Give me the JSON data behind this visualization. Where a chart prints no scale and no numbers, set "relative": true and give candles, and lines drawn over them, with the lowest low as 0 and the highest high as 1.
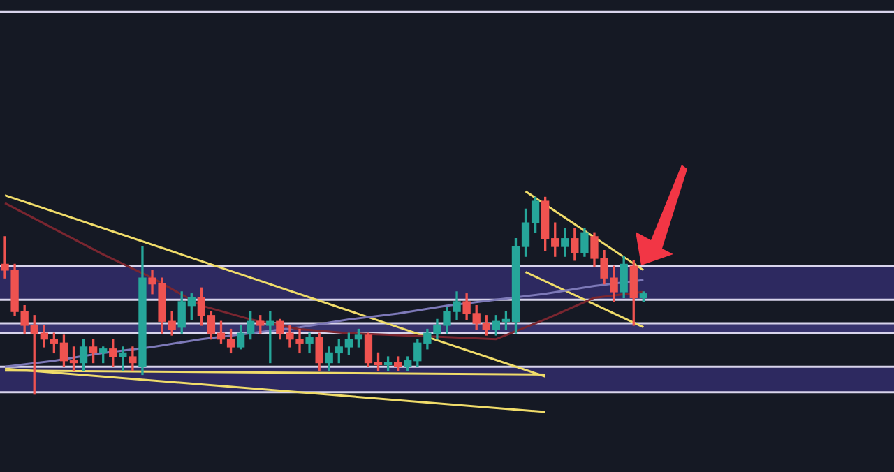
{
  "chart_data": {
    "type": "candlestick",
    "relative": true,
    "categories": [
      null,
      null,
      null,
      null,
      null,
      null,
      null,
      null,
      null,
      null,
      null,
      null,
      null,
      null,
      null,
      null,
      null,
      null,
      null,
      null,
      null,
      null,
      null,
      null,
      null,
      null,
      null,
      null,
      null,
      null,
      null,
      null,
      null,
      null,
      null,
      null,
      null,
      null,
      null,
      null,
      null,
      null,
      null,
      null,
      null,
      null,
      null,
      null,
      null,
      null,
      null,
      null,
      null,
      null,
      null,
      null,
      null,
      null,
      null,
      null,
      null,
      null,
      null,
      null,
      null,
      null
    ],
    "ohlc": [
      [
        0.66,
        0.8,
        0.59,
        0.63
      ],
      [
        0.63,
        0.66,
        0.4,
        0.42
      ],
      [
        0.42,
        0.45,
        0.31,
        0.35
      ],
      [
        0.35,
        0.4,
        0,
        0.31
      ],
      [
        0.31,
        0.35,
        0.24,
        0.28
      ],
      [
        0.28,
        0.31,
        0.21,
        0.26
      ],
      [
        0.26,
        0.3,
        0.14,
        0.17
      ],
      [
        0.17,
        0.24,
        0.12,
        0.16
      ],
      [
        0.16,
        0.28,
        0.12,
        0.24
      ],
      [
        0.24,
        0.28,
        0.16,
        0.21
      ],
      [
        0.21,
        0.24,
        0.16,
        0.23
      ],
      [
        0.23,
        0.28,
        0.14,
        0.19
      ],
      [
        0.19,
        0.24,
        0.12,
        0.21
      ],
      [
        0.19,
        0.24,
        0.12,
        0.16
      ],
      [
        0.14,
        0.75,
        0.1,
        0.59
      ],
      [
        0.59,
        0.63,
        0.51,
        0.56
      ],
      [
        0.56,
        0.59,
        0.31,
        0.37
      ],
      [
        0.37,
        0.42,
        0.3,
        0.33
      ],
      [
        0.34,
        0.52,
        0.31,
        0.47
      ],
      [
        0.45,
        0.51,
        0.38,
        0.49
      ],
      [
        0.49,
        0.54,
        0.35,
        0.4
      ],
      [
        0.4,
        0.42,
        0.28,
        0.31
      ],
      [
        0.31,
        0.37,
        0.26,
        0.28
      ],
      [
        0.28,
        0.33,
        0.21,
        0.24
      ],
      [
        0.24,
        0.35,
        0.23,
        0.31
      ],
      [
        0.31,
        0.42,
        0.28,
        0.37
      ],
      [
        0.37,
        0.4,
        0.31,
        0.35
      ],
      [
        0.35,
        0.42,
        0.16,
        0.37
      ],
      [
        0.37,
        0.38,
        0.28,
        0.31
      ],
      [
        0.31,
        0.35,
        0.24,
        0.28
      ],
      [
        0.28,
        0.33,
        0.21,
        0.26
      ],
      [
        0.26,
        0.31,
        0.21,
        0.29
      ],
      [
        0.29,
        0.31,
        0.12,
        0.16
      ],
      [
        0.16,
        0.24,
        0.12,
        0.21
      ],
      [
        0.21,
        0.28,
        0.16,
        0.24
      ],
      [
        0.24,
        0.31,
        0.2,
        0.28
      ],
      [
        0.28,
        0.33,
        0.24,
        0.3
      ],
      [
        0.3,
        0.31,
        0.14,
        0.16
      ],
      [
        0.16,
        0.21,
        0.12,
        0.15
      ],
      [
        0.15,
        0.19,
        0.12,
        0.16
      ],
      [
        0.16,
        0.19,
        0.12,
        0.14
      ],
      [
        0.14,
        0.19,
        0.12,
        0.17
      ],
      [
        0.17,
        0.28,
        0.14,
        0.26
      ],
      [
        0.26,
        0.33,
        0.23,
        0.31
      ],
      [
        0.31,
        0.38,
        0.28,
        0.35
      ],
      [
        0.35,
        0.44,
        0.31,
        0.42
      ],
      [
        0.42,
        0.52,
        0.38,
        0.47
      ],
      [
        0.47,
        0.51,
        0.38,
        0.41
      ],
      [
        0.41,
        0.45,
        0.33,
        0.36
      ],
      [
        0.36,
        0.4,
        0.3,
        0.33
      ],
      [
        0.33,
        0.4,
        0.3,
        0.37
      ],
      [
        0.37,
        0.42,
        0.33,
        0.38
      ],
      [
        0.37,
        0.79,
        0.31,
        0.75
      ],
      [
        0.75,
        0.94,
        0.7,
        0.87
      ],
      [
        0.87,
        1,
        0.82,
        0.98
      ],
      [
        0.98,
        1,
        0.73,
        0.79
      ],
      [
        0.79,
        0.87,
        0.7,
        0.75
      ],
      [
        0.75,
        0.84,
        0.7,
        0.79
      ],
      [
        0.79,
        0.84,
        0.68,
        0.72
      ],
      [
        0.72,
        0.84,
        0.7,
        0.82
      ],
      [
        0.8,
        0.82,
        0.65,
        0.69
      ],
      [
        0.69,
        0.73,
        0.56,
        0.59
      ],
      [
        0.59,
        0.65,
        0.47,
        0.52
      ],
      [
        0.52,
        0.7,
        0.49,
        0.66
      ],
      [
        0.65,
        0.68,
        0.35,
        0.49
      ],
      [
        0.49,
        0.52,
        0.47,
        0.51
      ]
    ],
    "colors": [
      "#ef5350",
      "#ef5350",
      "#ef5350",
      "#ef5350",
      "#ef5350",
      "#ef5350",
      "#ef5350",
      "#ef5350",
      "#26a69a",
      "#ef5350",
      "#26a69a",
      "#ef5350",
      "#26a69a",
      "#ef5350",
      "#26a69a",
      "#ef5350",
      "#ef5350",
      "#ef5350",
      "#26a69a",
      "#26a69a",
      "#ef5350",
      "#ef5350",
      "#ef5350",
      "#ef5350",
      "#26a69a",
      "#26a69a",
      "#ef5350",
      "#26a69a",
      "#ef5350",
      "#ef5350",
      "#ef5350",
      "#26a69a",
      "#ef5350",
      "#26a69a",
      "#26a69a",
      "#26a69a",
      "#26a69a",
      "#ef5350",
      "#ef5350",
      "#26a69a",
      "#ef5350",
      "#26a69a",
      "#26a69a",
      "#26a69a",
      "#26a69a",
      "#26a69a",
      "#26a69a",
      "#ef5350",
      "#ef5350",
      "#ef5350",
      "#26a69a",
      "#26a69a",
      "#26a69a",
      "#26a69a",
      "#26a69a",
      "#ef5350",
      "#ef5350",
      "#26a69a",
      "#ef5350",
      "#26a69a",
      "#ef5350",
      "#ef5350",
      "#ef5350",
      "#26a69a",
      "#ef5350",
      "#26a69a"
    ],
    "series": [
      {
        "type": "line",
        "color": "#7a2630",
        "values": [
          0.97,
          null,
          null,
          null,
          null,
          0.84,
          null,
          null,
          null,
          null,
          0.71,
          null,
          null,
          null,
          null,
          0.59,
          null,
          null,
          null,
          null,
          0.45,
          null,
          null,
          null,
          null,
          0.38,
          null,
          null,
          null,
          null,
          0.33,
          null,
          null,
          null,
          null,
          0.31,
          null,
          null,
          null,
          null,
          0.3,
          null,
          null,
          null,
          null,
          0.29,
          null,
          null,
          null,
          null,
          0.28,
          null,
          null,
          null,
          null,
          0.38,
          null,
          null,
          null,
          null,
          0.49,
          null,
          null,
          null,
          null,
          0.52
        ]
      },
      {
        "type": "line",
        "color": "#7d79b8",
        "values": [
          0.14,
          null,
          null,
          null,
          null,
          0.17,
          null,
          null,
          null,
          null,
          0.21,
          null,
          null,
          null,
          null,
          0.24,
          null,
          null,
          null,
          null,
          0.28,
          null,
          null,
          null,
          null,
          0.31,
          null,
          null,
          null,
          null,
          0.34,
          null,
          null,
          null,
          null,
          0.38,
          null,
          null,
          null,
          null,
          0.41,
          null,
          null,
          null,
          null,
          0.45,
          null,
          null,
          null,
          null,
          0.48,
          null,
          null,
          null,
          null,
          0.51,
          null,
          null,
          null,
          null,
          0.55,
          null,
          null,
          null,
          null,
          0.58
        ]
      },
      {
        "type": "line",
        "color": "#f0dc6a",
        "values": [
          1.01,
          null,
          null,
          null,
          null,
          null,
          null,
          null,
          null,
          null,
          null,
          null,
          null,
          null,
          null,
          null,
          null,
          null,
          null,
          null,
          null,
          null,
          null,
          null,
          null,
          null,
          null,
          null,
          null,
          null,
          null,
          null,
          null,
          null,
          null,
          null,
          null,
          null,
          null,
          null,
          null,
          null,
          null,
          null,
          null,
          null,
          null,
          null,
          null,
          null,
          null,
          null,
          null,
          null,
          null,
          0.09,
          null,
          null,
          null,
          null,
          null,
          null,
          null,
          null,
          null,
          null
        ]
      },
      {
        "type": "line",
        "color": "#f0dc6a",
        "values": [
          0.13,
          null,
          null,
          null,
          null,
          null,
          null,
          null,
          null,
          null,
          null,
          null,
          null,
          null,
          null,
          null,
          null,
          null,
          null,
          null,
          null,
          null,
          null,
          null,
          null,
          null,
          null,
          null,
          null,
          null,
          null,
          null,
          null,
          null,
          null,
          null,
          null,
          null,
          null,
          null,
          null,
          null,
          null,
          null,
          null,
          null,
          null,
          null,
          null,
          null,
          null,
          null,
          null,
          null,
          null,
          -0.09,
          null,
          null,
          null,
          null,
          null,
          null,
          null,
          null,
          null,
          null
        ]
      },
      {
        "type": "line",
        "color": "#f0dc6a",
        "values": [
          0.12,
          null,
          null,
          null,
          null,
          null,
          null,
          null,
          null,
          null,
          null,
          null,
          null,
          null,
          null,
          null,
          null,
          null,
          null,
          null,
          null,
          null,
          null,
          null,
          null,
          null,
          null,
          null,
          null,
          null,
          null,
          null,
          null,
          null,
          null,
          null,
          null,
          null,
          null,
          null,
          null,
          null,
          null,
          null,
          null,
          null,
          null,
          null,
          null,
          null,
          null,
          null,
          null,
          null,
          null,
          0.1,
          null,
          null,
          null,
          null,
          null,
          null,
          null,
          null,
          null,
          null
        ]
      },
      {
        "type": "line",
        "color": "#f0dc6a",
        "values": [
          null,
          null,
          null,
          null,
          null,
          null,
          null,
          null,
          null,
          null,
          null,
          null,
          null,
          null,
          null,
          null,
          null,
          null,
          null,
          null,
          null,
          null,
          null,
          null,
          null,
          null,
          null,
          null,
          null,
          null,
          null,
          null,
          null,
          null,
          null,
          null,
          null,
          null,
          null,
          null,
          null,
          null,
          null,
          null,
          null,
          null,
          null,
          null,
          null,
          null,
          null,
          null,
          null,
          1.03,
          null,
          null,
          null,
          null,
          null,
          null,
          null,
          null,
          null,
          null,
          null,
          0.63
        ]
      },
      {
        "type": "line",
        "color": "#f0dc6a",
        "values": [
          null,
          null,
          null,
          null,
          null,
          null,
          null,
          null,
          null,
          null,
          null,
          null,
          null,
          null,
          null,
          null,
          null,
          null,
          null,
          null,
          null,
          null,
          null,
          null,
          null,
          null,
          null,
          null,
          null,
          null,
          null,
          null,
          null,
          null,
          null,
          null,
          null,
          null,
          null,
          null,
          null,
          null,
          null,
          null,
          null,
          null,
          null,
          null,
          null,
          null,
          null,
          null,
          null,
          0.62,
          null,
          null,
          null,
          null,
          null,
          null,
          null,
          null,
          null,
          null,
          null,
          0.34
        ]
      }
    ],
    "bands": [
      {
        "axis": "y",
        "from": 0.48,
        "to": 0.65,
        "color": "#2d2960"
      },
      {
        "axis": "y",
        "from": 0.01,
        "to": 0.14,
        "color": "#2d2960"
      },
      {
        "axis": "y",
        "from": 0.31,
        "to": 0.36,
        "color": "#37336d"
      }
    ],
    "ref_lines": [
      {
        "axis": "y",
        "value": 1.94,
        "color": "#d8d4ec"
      },
      {
        "axis": "y",
        "value": 0.65,
        "color": "#d8d4ec"
      },
      {
        "axis": "y",
        "value": 0.48,
        "color": "#d8d4ec"
      },
      {
        "axis": "y",
        "value": 0.36,
        "color": "#d8d4ec"
      },
      {
        "axis": "y",
        "value": 0.31,
        "color": "#d8d4ec"
      },
      {
        "axis": "y",
        "value": 0.14,
        "color": "#d8d4ec"
      },
      {
        "axis": "y",
        "value": 0.01,
        "color": "#d8d4ec"
      }
    ]
  }
}
